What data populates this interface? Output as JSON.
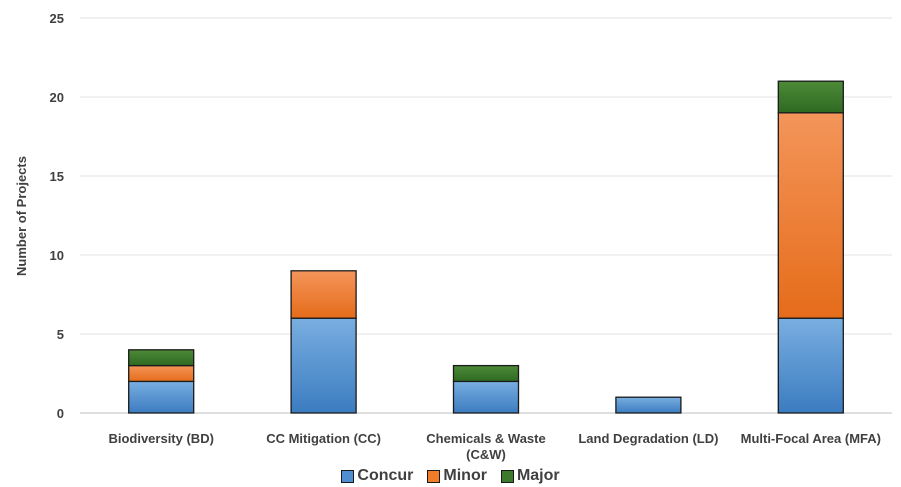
{
  "chart_data": {
    "type": "bar",
    "stacked": true,
    "categories": [
      [
        "Biodiversity (BD)"
      ],
      [
        "CC Mitigation (CC)"
      ],
      [
        "Chemicals & Waste",
        "(C&W)"
      ],
      [
        "Land Degradation (LD)"
      ],
      [
        "Multi-Focal Area (MFA)"
      ]
    ],
    "series": [
      {
        "name": "Concur",
        "values": [
          2,
          6,
          2,
          1,
          6
        ],
        "color": "#4f8fd0"
      },
      {
        "name": "Minor",
        "values": [
          1,
          3,
          0,
          0,
          13
        ],
        "color": "#f07d2a"
      },
      {
        "name": "Major",
        "values": [
          1,
          0,
          1,
          0,
          2
        ],
        "color": "#3e7a2b"
      }
    ],
    "ylabel": "Number of Projects",
    "ylim": [
      0,
      25
    ],
    "yticks": [
      0,
      5,
      10,
      15,
      20,
      25
    ],
    "grid": true,
    "legend": "bottom"
  }
}
